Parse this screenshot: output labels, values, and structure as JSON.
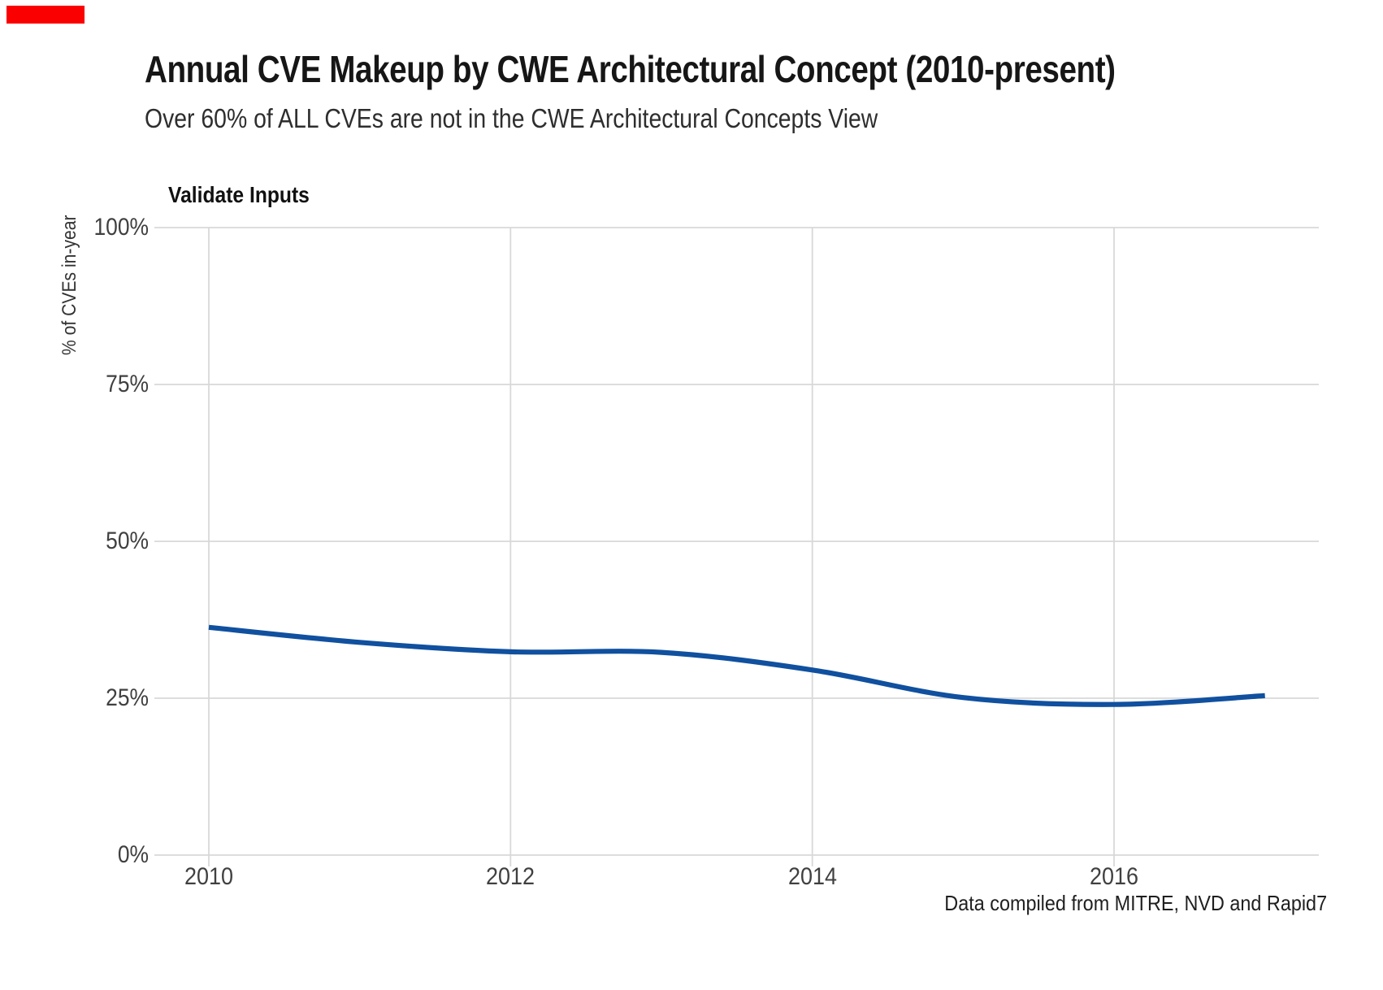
{
  "page": {
    "title": "Annual CVE Makeup by CWE Architectural Concept (2010-present)",
    "subtitle": "Over 60% of ALL CVEs are not in the CWE Architectural Concepts View",
    "caption": "Data compiled from MITRE, NVD and Rapid7"
  },
  "colors": {
    "line": "#10509f",
    "grid": "#d8d8d8",
    "tick_text": "#404040",
    "red_marker": "#fb0000"
  },
  "chart_data": {
    "type": "line",
    "panel_title": "Validate Inputs",
    "ylabel": "% of CVEs in-year",
    "xlabel": "",
    "x": [
      2010,
      2011,
      2012,
      2013,
      2014,
      2015,
      2016,
      2017
    ],
    "series": [
      {
        "name": "Validate Inputs",
        "values": [
          36.3,
          33.9,
          32.4,
          32.3,
          29.5,
          25.1,
          24.0,
          25.4
        ]
      }
    ],
    "ylim": [
      0,
      100
    ],
    "xlim": [
      2009.64,
      2017.36
    ],
    "y_tick_labels": [
      "100%",
      "75%",
      "50%",
      "25%",
      "0%"
    ],
    "y_tick_values": [
      100,
      75,
      50,
      25,
      0
    ],
    "x_tick_labels": [
      "2010",
      "2012",
      "2014",
      "2016"
    ],
    "x_tick_values": [
      2010,
      2012,
      2014,
      2016
    ],
    "grid": true,
    "legend_position": "none",
    "line_color": "#10509f",
    "smooth": true
  }
}
